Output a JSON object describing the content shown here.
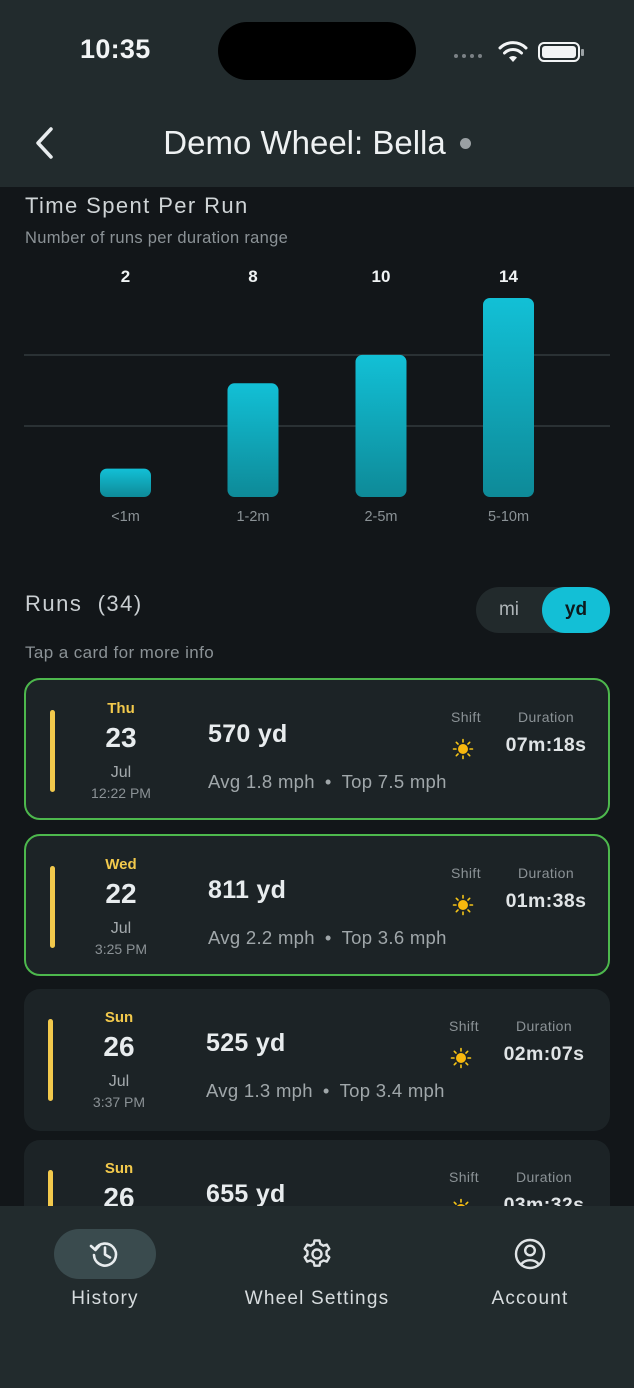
{
  "status_bar": {
    "time": "10:35"
  },
  "header": {
    "title": "Demo Wheel: Bella"
  },
  "chart_section": {
    "title": "Time Spent Per Run",
    "subtitle": "Number of runs per duration range"
  },
  "chart_data": {
    "type": "bar",
    "title": "Time Spent Per Run",
    "subtitle": "Number of runs per duration range",
    "categories": [
      "<1m",
      "1-2m",
      "2-5m",
      "5-10m"
    ],
    "values": [
      2,
      8,
      10,
      14
    ],
    "data_labels": [
      "2",
      "8",
      "10",
      "14"
    ],
    "xlabel": "",
    "ylabel": "",
    "ylim": [
      0,
      14
    ],
    "grid": true,
    "colors": {
      "bar_top": "#12c0d6",
      "bar_bottom": "#0e8a98",
      "gridline": "#3a4245"
    }
  },
  "runs": {
    "title": "Runs  (34)",
    "hint": "Tap a card for more info",
    "units": {
      "mi": "mi",
      "yd": "yd",
      "selected": "yd"
    },
    "shift_label": "Shift",
    "duration_label": "Duration",
    "items": [
      {
        "dow": "Thu",
        "day": "23",
        "month": "Jul",
        "time": "12:22 PM",
        "distance": "570 yd",
        "avg": "Avg 1.8 mph",
        "sep": "•",
        "top": "Top 7.5 mph",
        "shift_icon": "sun-icon",
        "duration": "07m:18s",
        "highlighted": true
      },
      {
        "dow": "Wed",
        "day": "22",
        "month": "Jul",
        "time": "3:25 PM",
        "distance": "811 yd",
        "avg": "Avg 2.2 mph",
        "sep": "•",
        "top": "Top 3.6 mph",
        "shift_icon": "sun-icon",
        "duration": "01m:38s",
        "highlighted": true
      },
      {
        "dow": "Sun",
        "day": "26",
        "month": "Jul",
        "time": "3:37 PM",
        "distance": "525 yd",
        "avg": "Avg 1.3 mph",
        "sep": "•",
        "top": "Top 3.4 mph",
        "shift_icon": "sun-icon",
        "duration": "02m:07s",
        "highlighted": false
      },
      {
        "dow": "Sun",
        "day": "26",
        "month": "",
        "time": "",
        "distance": "655 yd",
        "avg": "",
        "sep": "",
        "top": "",
        "shift_icon": "sun-icon",
        "duration": "03m:32s",
        "highlighted": false
      }
    ]
  },
  "bottom_nav": {
    "items": [
      {
        "label": "History",
        "icon": "history-icon",
        "active": true
      },
      {
        "label": "Wheel Settings",
        "icon": "gear-icon",
        "active": false
      },
      {
        "label": "Account",
        "icon": "account-icon",
        "active": false
      }
    ]
  }
}
